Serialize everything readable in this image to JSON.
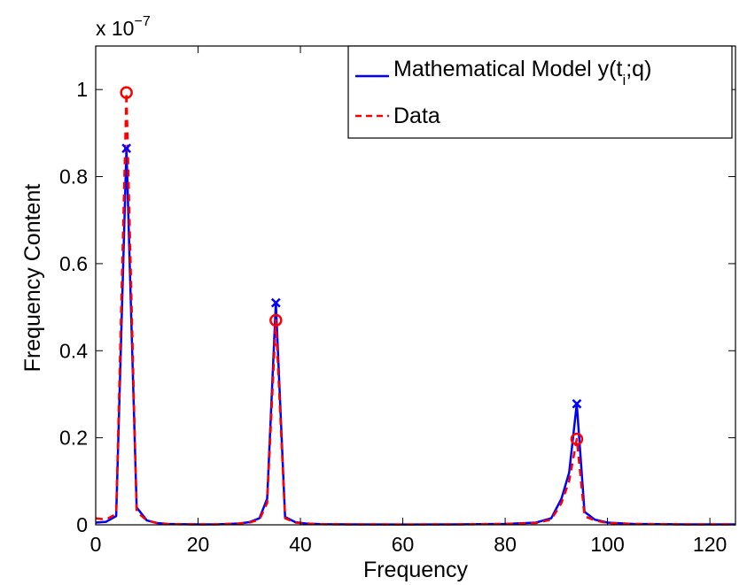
{
  "chart_data": {
    "type": "line",
    "title": "",
    "xlabel": "Frequency",
    "ylabel": "Frequency Content",
    "xlim": [
      0,
      125
    ],
    "ylim": [
      0,
      1.1
    ],
    "y_scale_label": {
      "base": "x 10",
      "exponent": "−7"
    },
    "x_ticks": [
      0,
      20,
      40,
      60,
      80,
      100,
      120
    ],
    "x_tick_labels": [
      "0",
      "20",
      "40",
      "60",
      "80",
      "100",
      "120"
    ],
    "y_ticks": [
      0,
      0.2,
      0.4,
      0.6,
      0.8,
      1
    ],
    "y_tick_labels": [
      "0",
      "0.2",
      "0.4",
      "0.6",
      "0.8",
      "1"
    ],
    "grid": false,
    "legend_position": "top-right",
    "series": [
      {
        "name": "Mathematical Model y(t_i;q)",
        "legend_main": "Mathematical Model y(t",
        "legend_sub": "i",
        "legend_tail": ";q)",
        "color": "#0000ff",
        "style": "solid",
        "x": [
          0,
          2,
          4,
          6,
          8,
          10,
          12,
          14,
          16,
          18,
          20,
          22,
          24,
          26,
          28,
          30,
          32,
          33.5,
          35.2,
          37,
          39,
          41,
          44,
          50,
          60,
          70,
          80,
          86,
          89,
          91,
          92.5,
          94,
          95.5,
          97.5,
          100,
          105,
          115,
          125
        ],
        "y": [
          0.005,
          0.007,
          0.02,
          0.865,
          0.04,
          0.01,
          0.004,
          0.002,
          0.0015,
          0.0012,
          0.001,
          0.001,
          0.0012,
          0.002,
          0.003,
          0.006,
          0.015,
          0.06,
          0.51,
          0.018,
          0.006,
          0.003,
          0.0015,
          0.001,
          0.0008,
          0.001,
          0.002,
          0.005,
          0.015,
          0.06,
          0.12,
          0.278,
          0.03,
          0.012,
          0.005,
          0.002,
          0.001,
          0.001
        ],
        "peaks": [
          {
            "x": 6,
            "y": 0.865
          },
          {
            "x": 35.2,
            "y": 0.51
          },
          {
            "x": 94,
            "y": 0.278
          }
        ],
        "peak_marker": "x"
      },
      {
        "name": "Data",
        "color": "#ff0000",
        "style": "dashed",
        "x": [
          0,
          2,
          4,
          6,
          8,
          10,
          12,
          14,
          16,
          18,
          20,
          22,
          24,
          26,
          28,
          30,
          32,
          33.5,
          35.2,
          37,
          39,
          41,
          44,
          50,
          60,
          70,
          80,
          86,
          89,
          91,
          92.5,
          94,
          95.5,
          97.5,
          100,
          105,
          115,
          125
        ],
        "y": [
          0.015,
          0.012,
          0.025,
          0.993,
          0.03,
          0.01,
          0.004,
          0.002,
          0.0015,
          0.0012,
          0.001,
          0.001,
          0.0012,
          0.002,
          0.003,
          0.005,
          0.012,
          0.05,
          0.47,
          0.015,
          0.005,
          0.003,
          0.0015,
          0.001,
          0.0008,
          0.001,
          0.002,
          0.004,
          0.012,
          0.05,
          0.1,
          0.197,
          0.02,
          0.01,
          0.004,
          0.002,
          0.001,
          0.001
        ],
        "peaks": [
          {
            "x": 6,
            "y": 0.993
          },
          {
            "x": 35.2,
            "y": 0.47
          },
          {
            "x": 94,
            "y": 0.197
          }
        ],
        "peak_marker": "o"
      }
    ]
  }
}
